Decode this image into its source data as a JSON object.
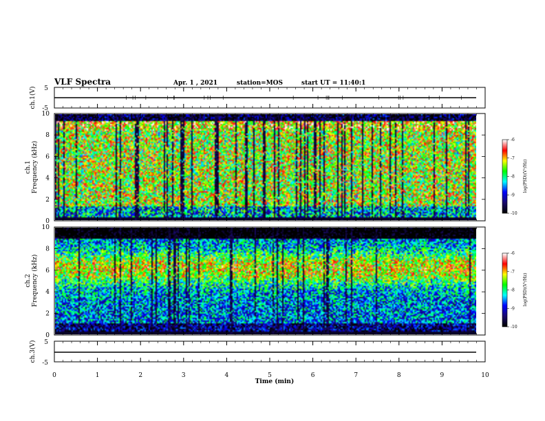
{
  "header": {
    "title": "VLF Spectra",
    "date": "Apr. 1 , 2021",
    "station": "station=MOS",
    "start": "start UT = 11:40:1"
  },
  "chart_data": [
    {
      "type": "line",
      "panel": "ch1-waveform",
      "ylabel": "ch.1(V)",
      "ylim": [
        -5,
        5
      ],
      "yticks": [
        "5",
        "-5"
      ],
      "x": [
        0,
        10
      ],
      "y": [
        -2,
        -2
      ]
    },
    {
      "type": "heatmap",
      "panel": "ch1-spectrogram",
      "ylabel": "ch.1\nFrequency (kHz)",
      "ylim": [
        0,
        10
      ],
      "yticks": [
        "0",
        "2",
        "4",
        "6",
        "8",
        "10"
      ],
      "xlim": [
        0,
        9.8
      ],
      "colorbar": {
        "label": "log(PSD)(V²/Hz)",
        "range": [
          -10,
          -6
        ],
        "ticks": [
          "-6",
          "-7",
          "-8",
          "-9",
          "-10"
        ]
      }
    },
    {
      "type": "heatmap",
      "panel": "ch2-spectrogram",
      "ylabel": "ch.2\nFrequency (kHz)",
      "ylim": [
        0,
        10
      ],
      "yticks": [
        "0",
        "2",
        "4",
        "6",
        "8",
        "10"
      ],
      "xlim": [
        0,
        9.8
      ],
      "colorbar": {
        "label": "log(PSD)(V²/Hz)",
        "range": [
          -10,
          -6
        ],
        "ticks": [
          "-6",
          "-7",
          "-8",
          "-9",
          "-10"
        ]
      }
    },
    {
      "type": "line",
      "panel": "ch3-waveform",
      "ylabel": "ch.3(V)",
      "ylim": [
        -5,
        5
      ],
      "yticks": [
        "5",
        "-5"
      ],
      "x": [
        0,
        10
      ],
      "y": [
        -2,
        -2
      ]
    }
  ],
  "xaxis": {
    "label": "Time (min)",
    "xlim": [
      0,
      10
    ],
    "ticks": [
      "0",
      "1",
      "2",
      "3",
      "4",
      "5",
      "6",
      "7",
      "8",
      "9",
      "10"
    ]
  },
  "colormap": [
    "#000000",
    "#1a0a6e",
    "#0000ff",
    "#00ffff",
    "#00ff00",
    "#ffff00",
    "#ff0000",
    "#ffffff"
  ]
}
